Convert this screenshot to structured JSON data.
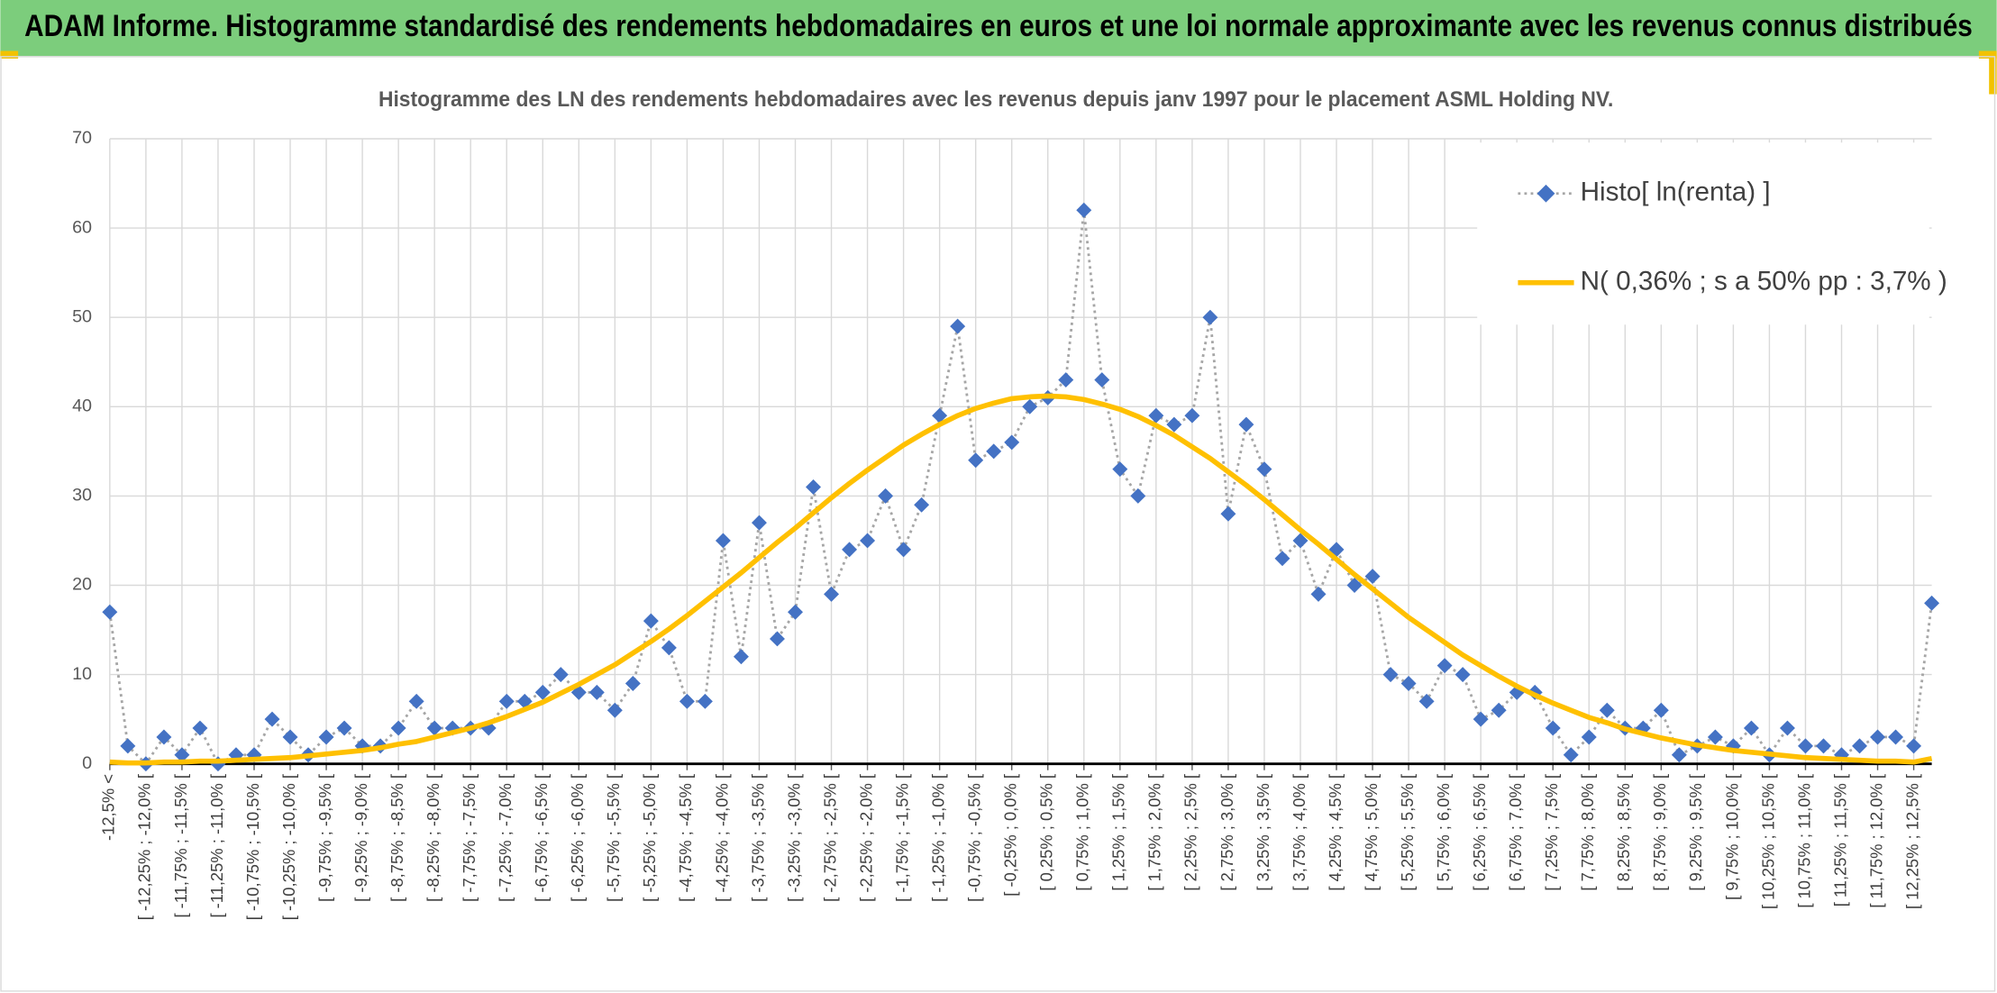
{
  "chart_data": {
    "type": "line",
    "title": "ADAM Informe. Histogramme standardisé des rendements hebdomadaires en euros et une loi normale approximante avec les revenus connus distribués",
    "subtitle": "Histogramme des LN des rendements hebdomadaires avec les revenus depuis janv 1997 pour le placement ASML Holding NV.",
    "categories": [
      "-12,5% <",
      null,
      "[ -12,25% ; -12,0% [",
      null,
      "[ -11,75% ; -11,5% [",
      null,
      "[ -11,25% ; -11,0% [",
      null,
      "[ -10,75% ; -10,5% [",
      null,
      "[ -10,25% ; -10,0% [",
      null,
      "[ -9,75% ; -9,5% [",
      null,
      "[ -9,25% ; -9,0% [",
      null,
      "[ -8,75% ; -8,5% [",
      null,
      "[ -8,25% ; -8,0% [",
      null,
      "[ -7,75% ; -7,5% [",
      null,
      "[ -7,25% ; -7,0% [",
      null,
      "[ -6,75% ; -6,5% [",
      null,
      "[ -6,25% ; -6,0% [",
      null,
      "[ -5,75% ; -5,5% [",
      null,
      "[ -5,25% ; -5,0% [",
      null,
      "[ -4,75% ; -4,5% [",
      null,
      "[ -4,25% ; -4,0% [",
      null,
      "[ -3,75% ; -3,5% [",
      null,
      "[ -3,25% ; -3,0% [",
      null,
      "[ -2,75% ; -2,5% [",
      null,
      "[ -2,25% ; -2,0% [",
      null,
      "[ -1,75% ; -1,5% [",
      null,
      "[ -1,25% ; -1,0% [",
      null,
      "[ -0,75% ; -0,5% [",
      null,
      "[ -0,25% ; 0,0% [",
      null,
      "[ 0,25% ; 0,5% [",
      null,
      "[ 0,75% ; 1,0% [",
      null,
      "[ 1,25% ; 1,5% [",
      null,
      "[ 1,75% ; 2,0% [",
      null,
      "[ 2,25% ; 2,5% [",
      null,
      "[ 2,75% ; 3,0% [",
      null,
      "[ 3,25% ; 3,5% [",
      null,
      "[ 3,75% ; 4,0% [",
      null,
      "[ 4,25% ; 4,5% [",
      null,
      "[ 4,75% ; 5,0% [",
      null,
      "[ 5,25% ; 5,5% [",
      null,
      "[ 5,75% ; 6,0% [",
      null,
      "[ 6,25% ; 6,5% [",
      null,
      "[ 6,75% ; 7,0% [",
      null,
      "[ 7,25% ; 7,5% [",
      null,
      "[ 7,75% ; 8,0% [",
      null,
      "[ 8,25% ; 8,5% [",
      null,
      "[ 8,75% ; 9,0% [",
      null,
      "[ 9,25% ; 9,5% [",
      null,
      "[ 9,75% ; 10,0% [",
      null,
      "[ 10,25% ; 10,5% [",
      null,
      "[ 10,75% ; 11,0% [",
      null,
      "[ 11,25% ; 11,5% [",
      null,
      "[ 11,75% ; 12,0% [",
      null,
      "[ 12,25% ; 12,5% [",
      null
    ],
    "series": [
      {
        "name": "Histo[ ln(renta) ]",
        "color": "#4472c4",
        "marker": "diamond",
        "line_color": "#a6a6a6",
        "dash": "dotted",
        "values": [
          17,
          2,
          0,
          3,
          1,
          4,
          0,
          1,
          1,
          5,
          3,
          1,
          3,
          4,
          2,
          2,
          4,
          7,
          4,
          4,
          4,
          4,
          7,
          7,
          8,
          10,
          8,
          8,
          6,
          9,
          16,
          13,
          7,
          7,
          25,
          12,
          27,
          14,
          17,
          31,
          19,
          24,
          25,
          30,
          24,
          29,
          39,
          49,
          34,
          35,
          36,
          40,
          41,
          43,
          62,
          43,
          33,
          30,
          39,
          38,
          39,
          50,
          28,
          38,
          33,
          23,
          25,
          19,
          24,
          20,
          21,
          10,
          9,
          7,
          11,
          10,
          5,
          6,
          8,
          8,
          4,
          1,
          3,
          6,
          4,
          4,
          6,
          1,
          2,
          3,
          2,
          4,
          1,
          4,
          2,
          2,
          1,
          2,
          3,
          3,
          2,
          18
        ]
      },
      {
        "name": "N( 0,36% ; s a 50% pp : 3,7% )",
        "color": "#ffc000",
        "marker": "none",
        "values": [
          0.2,
          0.1,
          0.1,
          0.2,
          0.2,
          0.3,
          0.3,
          0.4,
          0.5,
          0.6,
          0.7,
          0.9,
          1.1,
          1.3,
          1.5,
          1.8,
          2.2,
          2.5,
          3.0,
          3.5,
          4.0,
          4.6,
          5.3,
          6.1,
          6.9,
          7.9,
          8.9,
          10.0,
          11.1,
          12.4,
          13.7,
          15.1,
          16.6,
          18.2,
          19.8,
          21.4,
          23.1,
          24.8,
          26.4,
          28.1,
          29.8,
          31.4,
          32.9,
          34.3,
          35.7,
          36.9,
          38.0,
          39.0,
          39.8,
          40.4,
          40.9,
          41.1,
          41.2,
          41.1,
          40.8,
          40.3,
          39.7,
          38.9,
          37.9,
          36.8,
          35.5,
          34.2,
          32.7,
          31.2,
          29.6,
          27.9,
          26.2,
          24.6,
          22.9,
          21.2,
          19.6,
          18.0,
          16.4,
          15.0,
          13.6,
          12.2,
          11.0,
          9.8,
          8.7,
          7.7,
          6.8,
          6.0,
          5.2,
          4.6,
          3.9,
          3.4,
          2.9,
          2.5,
          2.1,
          1.8,
          1.5,
          1.3,
          1.1,
          0.9,
          0.7,
          0.6,
          0.5,
          0.4,
          0.3,
          0.3,
          0.2,
          0.6
        ]
      }
    ],
    "ylim": [
      0,
      70
    ],
    "yticks": [
      0,
      10,
      20,
      30,
      40,
      50,
      60,
      70
    ],
    "grid": true,
    "legend": "top-right"
  }
}
